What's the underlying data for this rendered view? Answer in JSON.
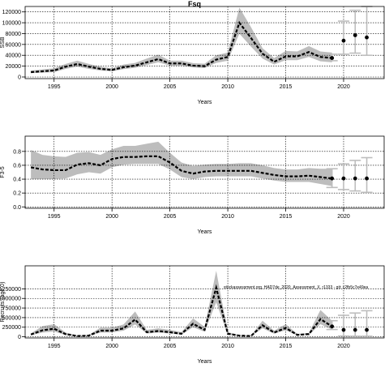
{
  "title": "Fsq",
  "note": "stockassessment.org, HAD7de_2020_Assessment_X, r1333 - git: c2fb5c7e49ea",
  "colors": {
    "band": "#bdbdbd",
    "line": "#000000",
    "proj_band": "#bdbdbd",
    "grid": "#000000"
  },
  "chart_data": [
    {
      "type": "area",
      "title": "Fsq",
      "xlabel": "Years",
      "ylabel": "SSB",
      "xlim": [
        1992.5,
        2023.5
      ],
      "ylim": [
        -3000,
        130000
      ],
      "xticks": [
        1995,
        2000,
        2005,
        2010,
        2015,
        2020
      ],
      "yticks": [
        0,
        20000,
        40000,
        60000,
        80000,
        100000,
        120000
      ],
      "ytick_labels": [
        "0",
        "20000",
        "40000",
        "60000",
        "80000",
        "100000",
        "120000"
      ],
      "grid": true,
      "x": [
        1993,
        1994,
        1995,
        1996,
        1997,
        1998,
        1999,
        2000,
        2001,
        2002,
        2003,
        2004,
        2005,
        2006,
        2007,
        2008,
        2009,
        2010,
        2011,
        2012,
        2013,
        2014,
        2015,
        2016,
        2017,
        2018,
        2019
      ],
      "y": [
        9000,
        10500,
        12000,
        19000,
        24000,
        19000,
        15000,
        13000,
        18000,
        21000,
        27000,
        33000,
        25000,
        25000,
        21000,
        20000,
        32000,
        37000,
        100000,
        72000,
        43000,
        28000,
        38000,
        38000,
        46000,
        37000,
        35000
      ],
      "lower": [
        7000,
        8000,
        9000,
        15000,
        19000,
        15000,
        12000,
        10500,
        14500,
        17000,
        22000,
        27000,
        21000,
        21000,
        17500,
        16500,
        26000,
        30000,
        80000,
        56000,
        34000,
        23000,
        31000,
        31000,
        37000,
        29000,
        27000
      ],
      "upper": [
        12000,
        14000,
        16000,
        24000,
        30000,
        24000,
        19000,
        16000,
        23000,
        26000,
        34000,
        41000,
        30000,
        30000,
        25500,
        24500,
        40000,
        45000,
        128000,
        92000,
        53000,
        35000,
        48000,
        47000,
        57000,
        47000,
        45000
      ],
      "projection": {
        "x": [
          2019,
          2020,
          2021,
          2022
        ],
        "y": [
          35000,
          67000,
          77000,
          73000
        ],
        "lower": [
          30000,
          42000,
          44000,
          40000
        ],
        "upper": [
          42000,
          103000,
          123000,
          130000
        ]
      }
    },
    {
      "type": "area",
      "xlabel": "Years",
      "ylabel": "F3-5",
      "xlim": [
        1992.5,
        2023.5
      ],
      "ylim": [
        -0.02,
        1.02
      ],
      "xticks": [
        1995,
        2000,
        2005,
        2010,
        2015,
        2020
      ],
      "yticks": [
        0,
        0.2,
        0.4,
        0.6,
        0.8
      ],
      "ytick_labels": [
        "0.0",
        "0.2",
        "0.4",
        "0.6",
        "0.8"
      ],
      "grid": true,
      "x": [
        1993,
        1994,
        1995,
        1996,
        1997,
        1998,
        1999,
        2000,
        2001,
        2002,
        2003,
        2004,
        2005,
        2006,
        2007,
        2008,
        2009,
        2010,
        2011,
        2012,
        2013,
        2014,
        2015,
        2016,
        2017,
        2018,
        2019
      ],
      "y": [
        0.57,
        0.54,
        0.53,
        0.53,
        0.61,
        0.63,
        0.6,
        0.69,
        0.72,
        0.72,
        0.73,
        0.73,
        0.64,
        0.52,
        0.48,
        0.51,
        0.52,
        0.52,
        0.52,
        0.52,
        0.49,
        0.46,
        0.44,
        0.44,
        0.45,
        0.43,
        0.41
      ],
      "lower": [
        0.4,
        0.4,
        0.4,
        0.41,
        0.47,
        0.5,
        0.48,
        0.57,
        0.61,
        0.62,
        0.62,
        0.62,
        0.54,
        0.43,
        0.4,
        0.43,
        0.44,
        0.44,
        0.44,
        0.44,
        0.41,
        0.38,
        0.36,
        0.36,
        0.36,
        0.33,
        0.3
      ],
      "upper": [
        0.82,
        0.75,
        0.73,
        0.72,
        0.78,
        0.79,
        0.75,
        0.83,
        0.88,
        0.88,
        0.91,
        0.94,
        0.78,
        0.64,
        0.59,
        0.61,
        0.62,
        0.62,
        0.63,
        0.63,
        0.6,
        0.56,
        0.54,
        0.54,
        0.56,
        0.55,
        0.55
      ],
      "projection": {
        "x": [
          2019,
          2020,
          2021,
          2022
        ],
        "y": [
          0.41,
          0.41,
          0.41,
          0.41
        ],
        "lower": [
          0.28,
          0.25,
          0.23,
          0.21
        ],
        "upper": [
          0.55,
          0.62,
          0.67,
          0.71
        ]
      }
    },
    {
      "type": "area",
      "xlabel": "Years",
      "ylabel": "Recruits (age 0)",
      "xlim": [
        1992.5,
        2023.5
      ],
      "ylim": [
        -30000,
        1850000
      ],
      "xticks": [
        1995,
        2000,
        2005,
        2010,
        2015,
        2020
      ],
      "yticks": [
        0,
        250000,
        500000,
        750000,
        1000000,
        1250000
      ],
      "ytick_labels": [
        "0",
        "250000",
        "500000",
        "750000",
        "1000000",
        "1250000"
      ],
      "grid": true,
      "x": [
        1993,
        1994,
        1995,
        1996,
        1997,
        1998,
        1999,
        2000,
        2001,
        2002,
        2003,
        2004,
        2005,
        2006,
        2007,
        2008,
        2009,
        2010,
        2011,
        2012,
        2013,
        2014,
        2015,
        2016,
        2017,
        2018,
        2019
      ],
      "y": [
        60000,
        170000,
        210000,
        70000,
        20000,
        30000,
        160000,
        160000,
        220000,
        450000,
        120000,
        150000,
        120000,
        80000,
        340000,
        180000,
        1280000,
        80000,
        30000,
        20000,
        300000,
        110000,
        230000,
        50000,
        70000,
        460000,
        270000
      ],
      "lower": [
        40000,
        110000,
        140000,
        45000,
        12000,
        20000,
        110000,
        115000,
        160000,
        320000,
        85000,
        110000,
        85000,
        55000,
        250000,
        130000,
        900000,
        55000,
        20000,
        14000,
        220000,
        80000,
        170000,
        35000,
        50000,
        330000,
        190000
      ],
      "upper": [
        90000,
        280000,
        330000,
        110000,
        35000,
        50000,
        240000,
        240000,
        320000,
        660000,
        180000,
        220000,
        180000,
        120000,
        480000,
        260000,
        1720000,
        120000,
        45000,
        30000,
        420000,
        160000,
        330000,
        75000,
        100000,
        700000,
        420000
      ],
      "projection": {
        "x": [
          2019,
          2020,
          2021,
          2022
        ],
        "y": [
          270000,
          180000,
          180000,
          180000
        ],
        "lower": [
          190000,
          20000,
          15000,
          15000
        ],
        "upper": [
          420000,
          560000,
          620000,
          680000
        ]
      }
    }
  ]
}
